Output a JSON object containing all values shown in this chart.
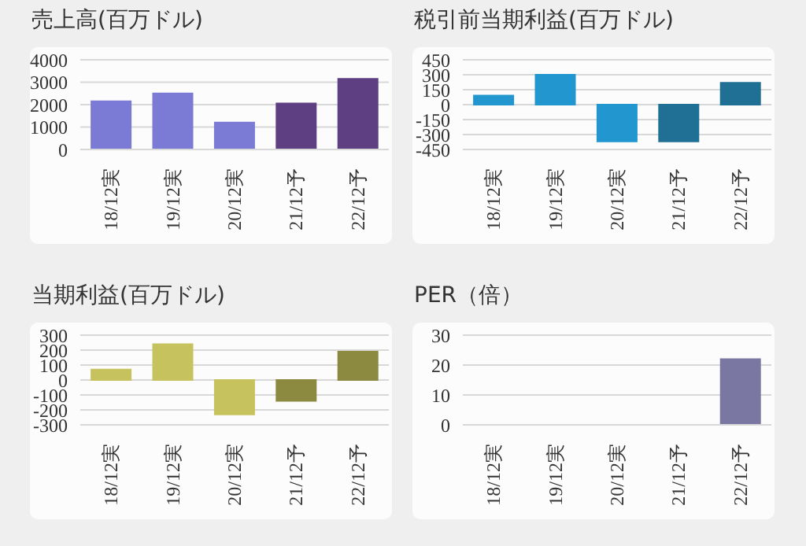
{
  "chart_data": [
    {
      "type": "bar",
      "title": "売上高(百万ドル)",
      "categories": [
        "18/12実",
        "19/12実",
        "20/12実",
        "21/12予",
        "22/12予"
      ],
      "values": [
        2150,
        2500,
        1200,
        2050,
        3150
      ],
      "colors": [
        "#7b7bd6",
        "#7b7bd6",
        "#7b7bd6",
        "#5e3f82",
        "#5e3f82"
      ],
      "ylim": [
        0,
        4000
      ],
      "yticks": [
        0,
        1000,
        2000,
        3000,
        4000
      ],
      "grid": "y"
    },
    {
      "type": "bar",
      "title": "税引前当期利益(百万ドル)",
      "categories": [
        "18/12実",
        "19/12実",
        "20/12実",
        "21/12予",
        "22/12予"
      ],
      "values": [
        90,
        300,
        -370,
        -370,
        220
      ],
      "colors": [
        "#2196cf",
        "#2196cf",
        "#2196cf",
        "#206f94",
        "#206f94"
      ],
      "ylim": [
        -450,
        450
      ],
      "yticks": [
        -450,
        -300,
        -150,
        0,
        150,
        300,
        450
      ],
      "grid": "y"
    },
    {
      "type": "bar",
      "title": "当期利益(百万ドル)",
      "categories": [
        "18/12実",
        "19/12実",
        "20/12実",
        "21/12予",
        "22/12予"
      ],
      "values": [
        70,
        240,
        -230,
        -140,
        190
      ],
      "colors": [
        "#c6c35e",
        "#c6c35e",
        "#c6c35e",
        "#8b8a40",
        "#8b8a40"
      ],
      "ylim": [
        -300,
        300
      ],
      "yticks": [
        -300,
        -200,
        -100,
        0,
        100,
        200,
        300
      ],
      "grid": "y"
    },
    {
      "type": "bar",
      "title": "PER（倍）",
      "categories": [
        "18/12実",
        "19/12実",
        "20/12実",
        "21/12予",
        "22/12予"
      ],
      "values": [
        null,
        null,
        null,
        null,
        22
      ],
      "colors": [
        "#7a78a3",
        "#7a78a3",
        "#7a78a3",
        "#7a78a3",
        "#7a78a3"
      ],
      "ylim": [
        0,
        30
      ],
      "yticks": [
        0,
        10,
        20,
        30
      ],
      "grid": "y"
    }
  ]
}
